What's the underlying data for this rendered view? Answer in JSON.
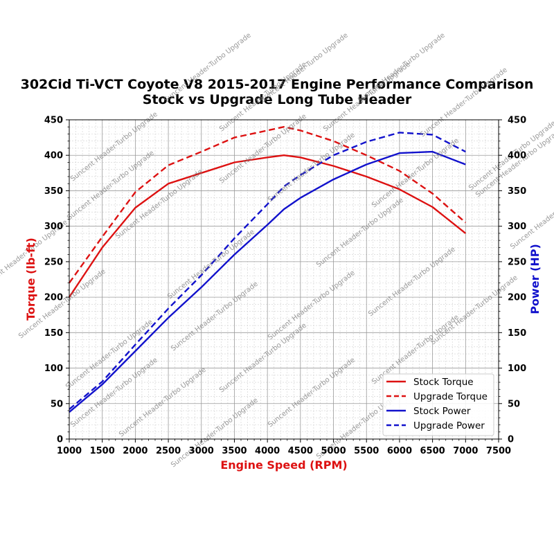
{
  "chart_data": {
    "type": "line",
    "title_line1": "302Cid Ti-VCT Coyote V8 2015-2017 Engine Performance Comparison",
    "title_line2": "Stock vs Upgrade Long Tube Header",
    "xlabel": "Engine Speed (RPM)",
    "ylabel_left": "Torque (lb-ft)",
    "ylabel_right": "Power (HP)",
    "xlim": [
      1000,
      7500
    ],
    "ylim_left": [
      0,
      450
    ],
    "ylim_right": [
      0,
      450
    ],
    "x_ticks": [
      1000,
      1500,
      2000,
      2500,
      3000,
      3500,
      4000,
      4500,
      5000,
      5500,
      6000,
      6500,
      7000,
      7500
    ],
    "y_ticks": [
      0,
      50,
      100,
      150,
      200,
      250,
      300,
      350,
      400,
      450
    ],
    "grid": true,
    "legend_position": "lower-right",
    "watermark": "Suncent Header-Turbo Upgrade",
    "series": [
      {
        "name": "Stock Torque",
        "axis": "left",
        "color": "#dd1111",
        "dash": false,
        "x": [
          1000,
          1500,
          2000,
          2500,
          3000,
          3500,
          4000,
          4250,
          4500,
          5000,
          5500,
          6000,
          6500,
          7000
        ],
        "values": [
          200,
          270,
          326,
          360,
          375,
          390,
          397,
          400,
          397,
          385,
          370,
          352,
          327,
          290
        ]
      },
      {
        "name": "Upgrade Torque",
        "axis": "left",
        "color": "#dd1111",
        "dash": true,
        "x": [
          1000,
          1500,
          2000,
          2500,
          3000,
          3500,
          4000,
          4250,
          4500,
          5000,
          5500,
          6000,
          6500,
          7000
        ],
        "values": [
          220,
          285,
          348,
          386,
          405,
          425,
          435,
          440,
          435,
          420,
          400,
          378,
          346,
          305
        ]
      },
      {
        "name": "Stock Power",
        "axis": "right",
        "color": "#1111cc",
        "dash": false,
        "x": [
          1000,
          1500,
          2000,
          2500,
          3000,
          3500,
          4000,
          4250,
          4500,
          5000,
          5500,
          6000,
          6500,
          7000
        ],
        "values": [
          38,
          77,
          124,
          171,
          214,
          260,
          302,
          324,
          340,
          366,
          387,
          403,
          405,
          387
        ]
      },
      {
        "name": "Upgrade Power",
        "axis": "right",
        "color": "#1111cc",
        "dash": true,
        "x": [
          1000,
          1500,
          2000,
          2500,
          3000,
          3500,
          4000,
          4250,
          4500,
          5000,
          5500,
          6000,
          6500,
          7000
        ],
        "values": [
          42,
          81,
          133,
          184,
          231,
          283,
          331,
          356,
          372,
          400,
          419,
          432,
          429,
          405
        ]
      }
    ]
  }
}
